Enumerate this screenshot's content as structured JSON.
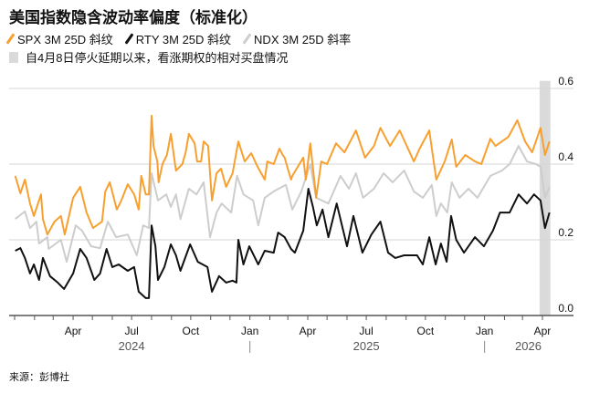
{
  "colors": {
    "spx": "#f7a030",
    "rty": "#111111",
    "ndx": "#cdcdcd",
    "band": "#dadada",
    "grid": "#d6d6d6",
    "axis": "#555555"
  },
  "chart_data": {
    "type": "line",
    "title": "美国指数隐含波动率偏度（标准化）",
    "source": "来源：彭博社",
    "band": {
      "label": "自4月8日停火延期以来，看涨期权的相对买盘情况",
      "start": "2026-04-08",
      "end": "2026-04-12"
    },
    "ylim": [
      0,
      0.6
    ],
    "yticks": [
      "0.0",
      "0.2",
      "0.4",
      "0.6"
    ],
    "ytick_values": [
      0,
      0.2,
      0.4,
      0.6
    ],
    "grid": true,
    "xlim": [
      "2023-12-24",
      "2026-05-01"
    ],
    "xticks": [
      {
        "date": "2024-04-01",
        "label": "Apr"
      },
      {
        "date": "2024-07-01",
        "label": "Jul"
      },
      {
        "date": "2024-10-01",
        "label": "Oct"
      },
      {
        "date": "2025-01-01",
        "label": "Jan"
      },
      {
        "date": "2025-04-01",
        "label": "Apr"
      },
      {
        "date": "2025-07-01",
        "label": "Jul"
      },
      {
        "date": "2025-10-01",
        "label": "Oct"
      },
      {
        "date": "2026-01-01",
        "label": "Jan"
      },
      {
        "date": "2026-04-01",
        "label": "Apr"
      }
    ],
    "years": [
      {
        "label": "2024",
        "center": "2024-07-01"
      },
      {
        "label": "2025",
        "center": "2025-07-01"
      },
      {
        "label": "2026",
        "center": "2026-03-10"
      }
    ],
    "legend_position": "top-left",
    "series": [
      {
        "key": "ndx",
        "name": "NDX 3M 25D 斜率",
        "values": [
          [
            "2024-01-02",
            0.255
          ],
          [
            "2024-01-17",
            0.275
          ],
          [
            "2024-01-25",
            0.231
          ],
          [
            "2024-02-04",
            0.248
          ],
          [
            "2024-02-08",
            0.19
          ],
          [
            "2024-02-21",
            0.207
          ],
          [
            "2024-02-23",
            0.176
          ],
          [
            "2024-03-13",
            0.2
          ],
          [
            "2024-03-22",
            0.142
          ],
          [
            "2024-04-05",
            0.238
          ],
          [
            "2024-04-15",
            0.224
          ],
          [
            "2024-04-29",
            0.183
          ],
          [
            "2024-05-13",
            0.178
          ],
          [
            "2024-05-25",
            0.248
          ],
          [
            "2024-06-07",
            0.207
          ],
          [
            "2024-06-25",
            0.214
          ],
          [
            "2024-07-09",
            0.159
          ],
          [
            "2024-07-19",
            0.238
          ],
          [
            "2024-07-28",
            0.231
          ],
          [
            "2024-08-01",
            0.376
          ],
          [
            "2024-08-11",
            0.304
          ],
          [
            "2024-08-24",
            0.32
          ],
          [
            "2024-08-31",
            0.287
          ],
          [
            "2024-09-08",
            0.32
          ],
          [
            "2024-09-15",
            0.255
          ],
          [
            "2024-09-28",
            0.335
          ],
          [
            "2024-10-10",
            0.32
          ],
          [
            "2024-10-21",
            0.352
          ],
          [
            "2024-10-31",
            0.207
          ],
          [
            "2024-11-10",
            0.272
          ],
          [
            "2024-11-18",
            0.296
          ],
          [
            "2024-12-03",
            0.272
          ],
          [
            "2024-12-12",
            0.369
          ],
          [
            "2024-12-22",
            0.32
          ],
          [
            "2025-01-06",
            0.304
          ],
          [
            "2025-01-14",
            0.238
          ],
          [
            "2025-01-24",
            0.311
          ],
          [
            "2025-02-07",
            0.328
          ],
          [
            "2025-02-26",
            0.345
          ],
          [
            "2025-03-08",
            0.28
          ],
          [
            "2025-03-22",
            0.328
          ],
          [
            "2025-04-05",
            0.4
          ],
          [
            "2025-04-14",
            0.311
          ],
          [
            "2025-05-03",
            0.296
          ],
          [
            "2025-05-22",
            0.369
          ],
          [
            "2025-06-04",
            0.335
          ],
          [
            "2025-06-15",
            0.376
          ],
          [
            "2025-06-26",
            0.311
          ],
          [
            "2025-07-13",
            0.335
          ],
          [
            "2025-07-28",
            0.376
          ],
          [
            "2025-08-11",
            0.352
          ],
          [
            "2025-08-29",
            0.383
          ],
          [
            "2025-09-13",
            0.328
          ],
          [
            "2025-09-27",
            0.311
          ],
          [
            "2025-10-11",
            0.345
          ],
          [
            "2025-10-18",
            0.263
          ],
          [
            "2025-10-25",
            0.296
          ],
          [
            "2025-11-04",
            0.272
          ],
          [
            "2025-11-11",
            0.352
          ],
          [
            "2025-11-23",
            0.311
          ],
          [
            "2025-12-07",
            0.335
          ],
          [
            "2025-12-21",
            0.311
          ],
          [
            "2026-01-10",
            0.369
          ],
          [
            "2026-01-28",
            0.383
          ],
          [
            "2026-02-09",
            0.4
          ],
          [
            "2026-02-23",
            0.448
          ],
          [
            "2026-03-08",
            0.407
          ],
          [
            "2026-03-22",
            0.4
          ],
          [
            "2026-03-29",
            0.393
          ],
          [
            "2026-04-05",
            0.311
          ],
          [
            "2026-04-12",
            0.34
          ]
        ]
      },
      {
        "key": "spx",
        "name": "SPX 3M 25D 斜纹",
        "values": [
          [
            "2024-01-02",
            0.369
          ],
          [
            "2024-01-10",
            0.323
          ],
          [
            "2024-01-17",
            0.359
          ],
          [
            "2024-01-25",
            0.296
          ],
          [
            "2024-01-31",
            0.263
          ],
          [
            "2024-02-11",
            0.32
          ],
          [
            "2024-02-14",
            0.255
          ],
          [
            "2024-02-21",
            0.214
          ],
          [
            "2024-03-03",
            0.248
          ],
          [
            "2024-03-13",
            0.263
          ],
          [
            "2024-03-19",
            0.214
          ],
          [
            "2024-04-01",
            0.311
          ],
          [
            "2024-04-12",
            0.34
          ],
          [
            "2024-04-22",
            0.272
          ],
          [
            "2024-05-02",
            0.231
          ],
          [
            "2024-05-16",
            0.248
          ],
          [
            "2024-05-21",
            0.328
          ],
          [
            "2024-05-28",
            0.352
          ],
          [
            "2024-06-08",
            0.28
          ],
          [
            "2024-06-15",
            0.304
          ],
          [
            "2024-06-25",
            0.347
          ],
          [
            "2024-07-05",
            0.32
          ],
          [
            "2024-07-12",
            0.28
          ],
          [
            "2024-07-16",
            0.369
          ],
          [
            "2024-07-23",
            0.32
          ],
          [
            "2024-07-28",
            0.32
          ],
          [
            "2024-08-01",
            0.528
          ],
          [
            "2024-08-04",
            0.448
          ],
          [
            "2024-08-10",
            0.407
          ],
          [
            "2024-08-12",
            0.352
          ],
          [
            "2024-08-18",
            0.4
          ],
          [
            "2024-08-25",
            0.424
          ],
          [
            "2024-08-31",
            0.48
          ],
          [
            "2024-09-08",
            0.383
          ],
          [
            "2024-09-18",
            0.4
          ],
          [
            "2024-09-23",
            0.431
          ],
          [
            "2024-09-28",
            0.48
          ],
          [
            "2024-10-07",
            0.455
          ],
          [
            "2024-10-11",
            0.407
          ],
          [
            "2024-10-17",
            0.407
          ],
          [
            "2024-10-21",
            0.46
          ],
          [
            "2024-10-28",
            0.448
          ],
          [
            "2024-11-03",
            0.304
          ],
          [
            "2024-11-10",
            0.376
          ],
          [
            "2024-11-17",
            0.388
          ],
          [
            "2024-11-25",
            0.34
          ],
          [
            "2024-12-05",
            0.376
          ],
          [
            "2024-12-14",
            0.46
          ],
          [
            "2024-12-24",
            0.407
          ],
          [
            "2025-01-03",
            0.429
          ],
          [
            "2025-01-13",
            0.393
          ],
          [
            "2025-01-24",
            0.359
          ],
          [
            "2025-01-28",
            0.407
          ],
          [
            "2025-02-07",
            0.4
          ],
          [
            "2025-02-16",
            0.441
          ],
          [
            "2025-02-21",
            0.424
          ],
          [
            "2025-02-24",
            0.417
          ],
          [
            "2025-03-06",
            0.359
          ],
          [
            "2025-03-08",
            0.369
          ],
          [
            "2025-03-25",
            0.417
          ],
          [
            "2025-03-29",
            0.359
          ],
          [
            "2025-04-05",
            0.455
          ],
          [
            "2025-04-14",
            0.311
          ],
          [
            "2025-04-22",
            0.407
          ],
          [
            "2025-05-01",
            0.4
          ],
          [
            "2025-05-15",
            0.455
          ],
          [
            "2025-05-28",
            0.431
          ],
          [
            "2025-06-15",
            0.489
          ],
          [
            "2025-06-29",
            0.417
          ],
          [
            "2025-07-13",
            0.448
          ],
          [
            "2025-07-23",
            0.496
          ],
          [
            "2025-08-07",
            0.448
          ],
          [
            "2025-08-22",
            0.489
          ],
          [
            "2025-09-04",
            0.441
          ],
          [
            "2025-09-13",
            0.407
          ],
          [
            "2025-09-22",
            0.441
          ],
          [
            "2025-10-07",
            0.489
          ],
          [
            "2025-10-11",
            0.441
          ],
          [
            "2025-10-18",
            0.359
          ],
          [
            "2025-10-31",
            0.407
          ],
          [
            "2025-11-11",
            0.465
          ],
          [
            "2025-11-18",
            0.393
          ],
          [
            "2025-12-02",
            0.424
          ],
          [
            "2025-12-17",
            0.407
          ],
          [
            "2025-12-27",
            0.4
          ],
          [
            "2026-01-10",
            0.467
          ],
          [
            "2026-01-18",
            0.448
          ],
          [
            "2026-02-07",
            0.472
          ],
          [
            "2026-02-21",
            0.516
          ],
          [
            "2026-03-05",
            0.46
          ],
          [
            "2026-03-16",
            0.431
          ],
          [
            "2026-03-29",
            0.496
          ],
          [
            "2026-04-05",
            0.424
          ],
          [
            "2026-04-12",
            0.46
          ]
        ]
      },
      {
        "key": "rty",
        "name": "RTY 3M 25D 斜纹",
        "values": [
          [
            "2024-01-02",
            0.171
          ],
          [
            "2024-01-10",
            0.178
          ],
          [
            "2024-01-17",
            0.152
          ],
          [
            "2024-01-25",
            0.111
          ],
          [
            "2024-01-31",
            0.135
          ],
          [
            "2024-02-08",
            0.094
          ],
          [
            "2024-02-14",
            0.152
          ],
          [
            "2024-02-25",
            0.104
          ],
          [
            "2024-03-08",
            0.087
          ],
          [
            "2024-03-18",
            0.07
          ],
          [
            "2024-04-01",
            0.111
          ],
          [
            "2024-04-12",
            0.176
          ],
          [
            "2024-04-22",
            0.152
          ],
          [
            "2024-05-04",
            0.094
          ],
          [
            "2024-05-13",
            0.111
          ],
          [
            "2024-05-23",
            0.176
          ],
          [
            "2024-06-01",
            0.128
          ],
          [
            "2024-06-11",
            0.135
          ],
          [
            "2024-06-25",
            0.118
          ],
          [
            "2024-07-05",
            0.128
          ],
          [
            "2024-07-12",
            0.063
          ],
          [
            "2024-07-23",
            0.046
          ],
          [
            "2024-07-28",
            0.046
          ],
          [
            "2024-08-01",
            0.238
          ],
          [
            "2024-08-07",
            0.183
          ],
          [
            "2024-08-11",
            0.094
          ],
          [
            "2024-08-21",
            0.128
          ],
          [
            "2024-08-31",
            0.188
          ],
          [
            "2024-09-08",
            0.159
          ],
          [
            "2024-09-15",
            0.118
          ],
          [
            "2024-09-30",
            0.188
          ],
          [
            "2024-10-12",
            0.142
          ],
          [
            "2024-10-27",
            0.128
          ],
          [
            "2024-11-03",
            0.063
          ],
          [
            "2024-11-14",
            0.104
          ],
          [
            "2024-11-25",
            0.087
          ],
          [
            "2024-12-05",
            0.092
          ],
          [
            "2024-12-11",
            0.087
          ],
          [
            "2024-12-14",
            0.2
          ],
          [
            "2024-12-22",
            0.135
          ],
          [
            "2024-12-31",
            0.183
          ],
          [
            "2025-01-14",
            0.135
          ],
          [
            "2025-01-24",
            0.171
          ],
          [
            "2025-02-07",
            0.166
          ],
          [
            "2025-02-14",
            0.219
          ],
          [
            "2025-02-24",
            0.207
          ],
          [
            "2025-03-06",
            0.176
          ],
          [
            "2025-03-12",
            0.166
          ],
          [
            "2025-03-25",
            0.224
          ],
          [
            "2025-04-02",
            0.335
          ],
          [
            "2025-04-09",
            0.287
          ],
          [
            "2025-04-15",
            0.238
          ],
          [
            "2025-04-24",
            0.28
          ],
          [
            "2025-05-03",
            0.207
          ],
          [
            "2025-05-16",
            0.296
          ],
          [
            "2025-06-01",
            0.183
          ],
          [
            "2025-06-11",
            0.263
          ],
          [
            "2025-06-25",
            0.166
          ],
          [
            "2025-07-09",
            0.214
          ],
          [
            "2025-07-23",
            0.248
          ],
          [
            "2025-08-04",
            0.166
          ],
          [
            "2025-08-15",
            0.152
          ],
          [
            "2025-08-29",
            0.159
          ],
          [
            "2025-09-18",
            0.159
          ],
          [
            "2025-09-27",
            0.135
          ],
          [
            "2025-10-07",
            0.207
          ],
          [
            "2025-10-17",
            0.135
          ],
          [
            "2025-10-25",
            0.19
          ],
          [
            "2025-11-03",
            0.142
          ],
          [
            "2025-11-10",
            0.263
          ],
          [
            "2025-11-18",
            0.2
          ],
          [
            "2025-11-30",
            0.166
          ],
          [
            "2025-12-17",
            0.207
          ],
          [
            "2025-12-31",
            0.183
          ],
          [
            "2026-01-14",
            0.224
          ],
          [
            "2026-01-25",
            0.272
          ],
          [
            "2026-02-09",
            0.272
          ],
          [
            "2026-02-23",
            0.32
          ],
          [
            "2026-03-08",
            0.296
          ],
          [
            "2026-03-19",
            0.32
          ],
          [
            "2026-03-29",
            0.304
          ],
          [
            "2026-04-05",
            0.231
          ],
          [
            "2026-04-12",
            0.272
          ]
        ]
      }
    ]
  }
}
